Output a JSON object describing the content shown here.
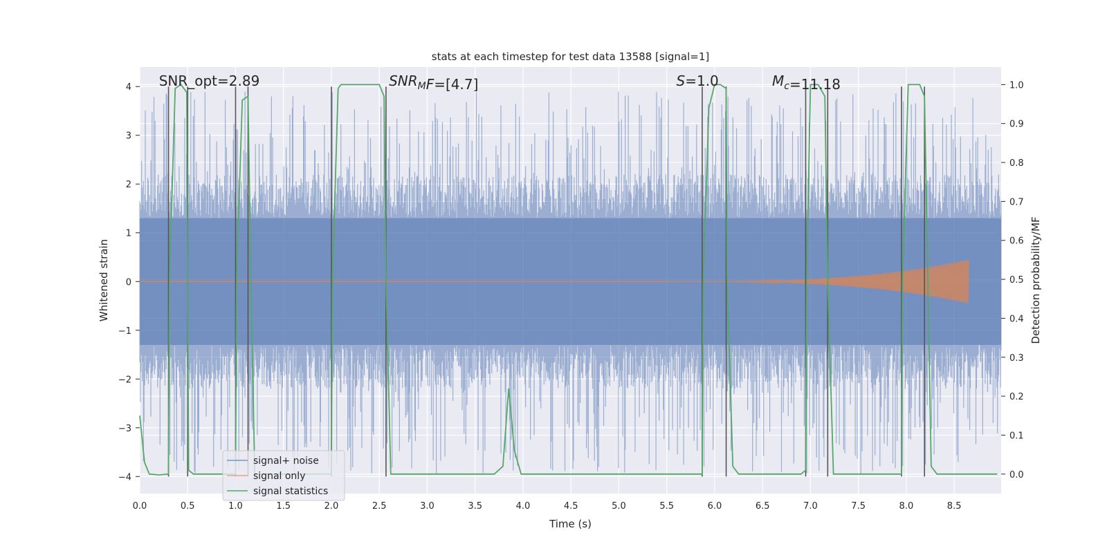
{
  "chart_data": {
    "type": "line",
    "title": "stats at each timestep for test data 13588 [signal=1]",
    "xlabel": "Time (s)",
    "ylabel_left": "Whitened strain",
    "ylabel_right": "Detection probability/MF",
    "xlim": [
      0,
      8.99
    ],
    "ylim_left": [
      -4.35,
      4.4
    ],
    "ylim_right": [
      -0.05,
      1.045
    ],
    "x_ticks": [
      "0.0",
      "0.5",
      "1.0",
      "1.5",
      "2.0",
      "2.5",
      "3.0",
      "3.5",
      "4.0",
      "4.5",
      "5.0",
      "5.5",
      "6.0",
      "6.5",
      "7.0",
      "7.5",
      "8.0",
      "8.5"
    ],
    "y_left_ticks": [
      "4",
      "3",
      "2",
      "1",
      "0",
      "−1",
      "−2",
      "−3",
      "−4"
    ],
    "y_right_ticks": [
      "1.0",
      "0.9",
      "0.8",
      "0.7",
      "0.6",
      "0.5",
      "0.4",
      "0.3",
      "0.2",
      "0.1",
      "0.0"
    ],
    "grid": true,
    "legend_position": "lower-left",
    "annotations": [
      {
        "prefix": "SNR_opt=2.89",
        "italic": "",
        "sub": "",
        "suffix": "",
        "x": 0.2
      },
      {
        "prefix": "",
        "italic": "SNR",
        "sub": "M",
        "italic2": "F",
        "suffix": "=[4.7]",
        "x": 2.6
      },
      {
        "prefix": "",
        "italic": "S",
        "sub": "",
        "italic2": "",
        "suffix": "=1.0",
        "x": 5.6
      },
      {
        "prefix": "",
        "italic": "M",
        "sub": "c",
        "italic2": "",
        "suffix": "=11.18",
        "x": 6.6
      }
    ],
    "vertical_markers": [
      0.3,
      0.5,
      1.0,
      1.13,
      2.0,
      2.57,
      5.87,
      6.12,
      6.95,
      7.18,
      7.95,
      8.19
    ],
    "series": [
      {
        "name": "signal+ noise",
        "color": "#4c72b0",
        "axis": "left",
        "kind": "noise",
        "envelope": {
          "core": 1.3,
          "peak_top": 3.9,
          "peak_bottom": -3.95
        }
      },
      {
        "name": "signal only",
        "color": "#dd8452",
        "axis": "left",
        "kind": "chirp",
        "t_start": 5.5,
        "t_merge": 8.65,
        "max_amplitude": 0.45
      },
      {
        "name": "signal statistics",
        "color": "#55a868",
        "axis": "right",
        "kind": "line",
        "x": [
          0.0,
          0.05,
          0.1,
          0.2,
          0.3,
          0.31,
          0.37,
          0.43,
          0.49,
          0.5,
          0.51,
          0.56,
          0.9,
          1.0,
          1.01,
          1.07,
          1.13,
          1.16,
          1.2,
          1.9,
          2.0,
          2.01,
          2.07,
          2.1,
          2.5,
          2.55,
          2.57,
          2.62,
          3.7,
          3.79,
          3.85,
          3.91,
          3.98,
          4.5,
          5.87,
          5.88,
          5.94,
          6.0,
          6.06,
          6.12,
          6.13,
          6.19,
          6.25,
          6.9,
          6.95,
          6.96,
          7.0,
          7.08,
          7.15,
          7.18,
          7.24,
          7.9,
          7.95,
          7.96,
          8.02,
          8.08,
          8.14,
          8.19,
          8.26,
          8.32,
          8.95
        ],
        "y": [
          0.15,
          0.03,
          0.0,
          -0.002,
          0.0,
          0.5,
          0.99,
          1.0,
          0.98,
          0.5,
          0.01,
          0.0,
          0.0,
          0.0,
          0.5,
          0.96,
          0.97,
          0.5,
          0.0,
          0.0,
          0.0,
          0.5,
          0.99,
          1.0,
          1.0,
          0.97,
          0.5,
          0.0,
          0.0,
          0.02,
          0.22,
          0.06,
          0.0,
          0.0,
          0.0,
          0.5,
          0.94,
          1.0,
          1.0,
          0.99,
          0.5,
          0.02,
          0.0,
          0.0,
          0.01,
          0.5,
          1.0,
          1.0,
          0.97,
          0.5,
          0.0,
          0.0,
          0.0,
          0.5,
          1.0,
          1.0,
          1.0,
          0.97,
          0.02,
          0.0,
          0.0
        ]
      }
    ]
  }
}
